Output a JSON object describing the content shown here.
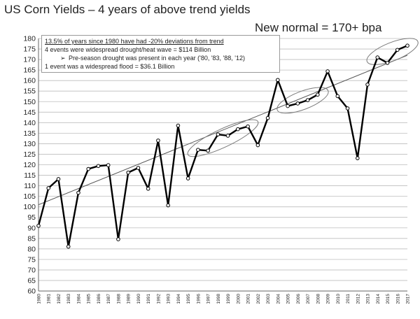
{
  "title": "US Corn Yields – 4 years of above trend yields",
  "subtitle": "New normal = 170+ bpa",
  "notes": {
    "line1": "13.5% of years since 1980 have had -20% deviations from trend",
    "line2": "4 events were widespread drought/heat wave = $114 Billion",
    "line3_bullet": "➢",
    "line3": "Pre-season drought was present in each year ('80, '83, '88, '12)",
    "line4": "1 event was a widespread flood = $36.1 Billion"
  },
  "chart_data": {
    "type": "line",
    "title": "US Corn Yields – 4 years of above trend yields",
    "xlabel": "",
    "ylabel": "",
    "ylim": [
      60,
      180
    ],
    "yticks": [
      60,
      65,
      70,
      75,
      80,
      85,
      90,
      95,
      100,
      105,
      110,
      115,
      120,
      125,
      130,
      135,
      140,
      145,
      150,
      155,
      160,
      165,
      170,
      175,
      180
    ],
    "grid": "horizontal",
    "x": [
      "1980",
      "1981",
      "1982",
      "1983",
      "1984",
      "1985",
      "1986",
      "1987",
      "1988",
      "1989",
      "1990",
      "1991",
      "1992",
      "1993",
      "1994",
      "1995",
      "1996",
      "1997",
      "1998",
      "1999",
      "2000",
      "2001",
      "2002",
      "2003",
      "2004",
      "2005",
      "2006",
      "2007",
      "2008",
      "2009",
      "2010",
      "2011",
      "2012",
      "2013",
      "2014",
      "2015",
      "2016",
      "2017"
    ],
    "series": [
      {
        "values": [
          91.0,
          108.9,
          113.2,
          81.1,
          106.7,
          118.0,
          119.4,
          119.8,
          84.6,
          116.3,
          118.5,
          108.6,
          131.5,
          100.7,
          138.6,
          113.5,
          127.1,
          126.7,
          134.4,
          133.8,
          136.9,
          138.2,
          129.3,
          142.2,
          160.3,
          147.9,
          149.1,
          150.7,
          153.3,
          164.4,
          152.6,
          146.8,
          123.1,
          158.1,
          171.0,
          168.4,
          174.6,
          176.6
        ],
        "color": "#000000",
        "markers": "open-circle"
      }
    ],
    "trendline": {
      "start": {
        "x": "1980",
        "y": 101
      },
      "end": {
        "x": "2017",
        "y": 172
      },
      "color": "#555555"
    },
    "highlights": [
      {
        "from": "1996",
        "to": "2001"
      },
      {
        "from": "2005",
        "to": "2008"
      },
      {
        "from": "2014",
        "to": "2017"
      }
    ]
  }
}
